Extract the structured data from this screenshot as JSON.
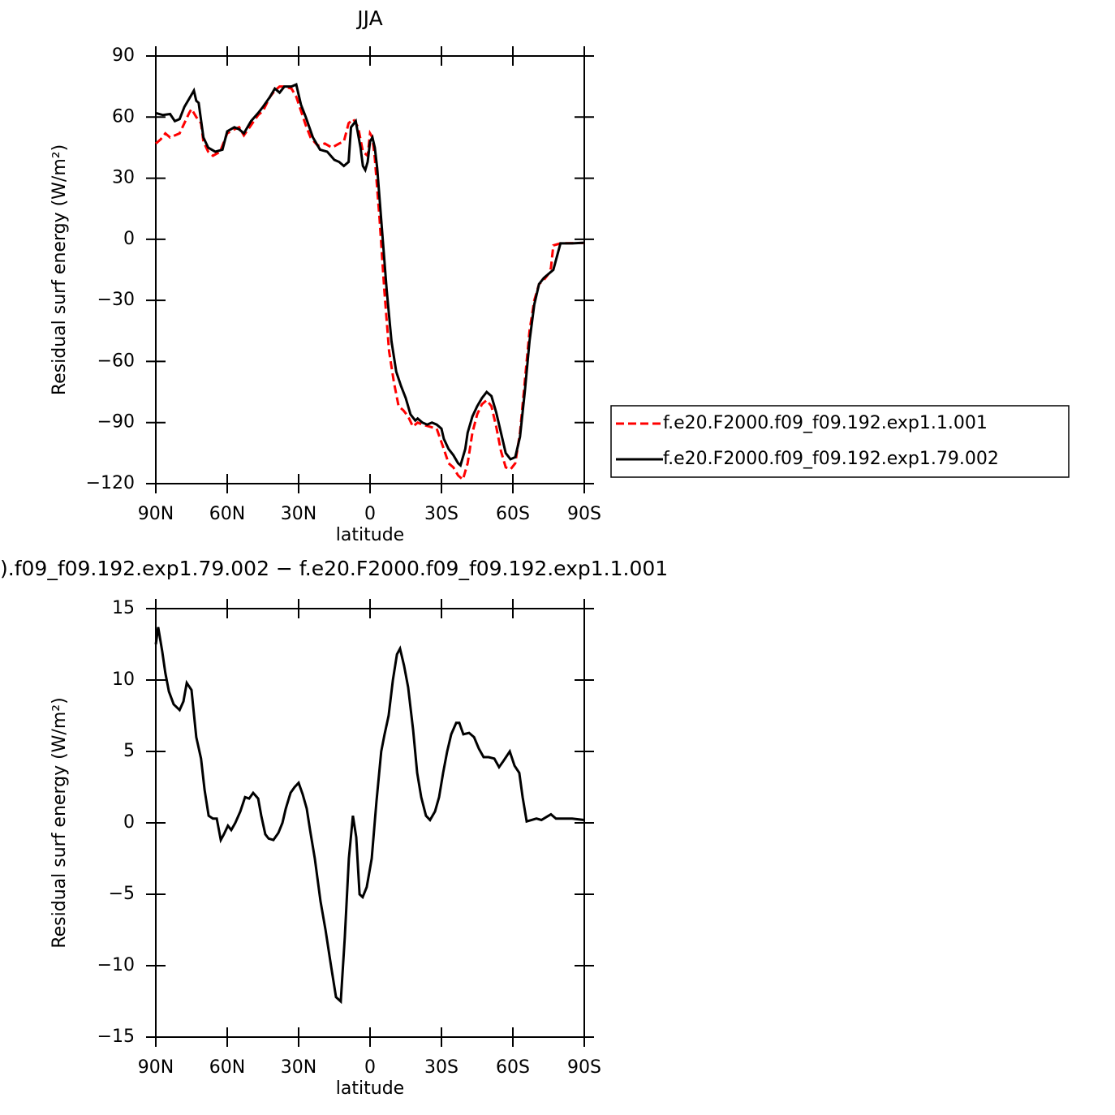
{
  "chart_data": [
    {
      "type": "line",
      "title": "JJA",
      "xlabel": "latitude",
      "ylabel": "Residual surf energy (W/m²)",
      "xlim": [
        90,
        -90
      ],
      "xticks": [
        {
          "value": 90,
          "label": "90N"
        },
        {
          "value": 60,
          "label": "60N"
        },
        {
          "value": 30,
          "label": "30N"
        },
        0,
        {
          "value": -30,
          "label": "30S"
        },
        {
          "value": -60,
          "label": "60S"
        },
        {
          "value": -90,
          "label": "90S"
        }
      ],
      "ylim": [
        -120,
        90
      ],
      "yticks": [
        {
          "value": -120,
          "label": "−120"
        },
        {
          "value": -90,
          "label": "−90"
        },
        {
          "value": -60,
          "label": "−60"
        },
        {
          "value": -30,
          "label": "−30"
        },
        0,
        30,
        60,
        90
      ],
      "legend": "right",
      "series": [
        {
          "name": "f.e20.F2000.f09_f09.192.exp1.1.001",
          "color": "#ff0000",
          "dash": true,
          "x": [
            90,
            88,
            86,
            84,
            82,
            80,
            78,
            76,
            75,
            73,
            71,
            70,
            68,
            66,
            63,
            60,
            57,
            55,
            53,
            50,
            47,
            45,
            42,
            40,
            38,
            36,
            33,
            31,
            29,
            27,
            25,
            22,
            19,
            16,
            13,
            11,
            9,
            7,
            5,
            3,
            1,
            0,
            -1,
            -2,
            -4,
            -6,
            -8,
            -10,
            -12,
            -14,
            -16,
            -18,
            -20,
            -22,
            -25,
            -28,
            -31,
            -33,
            -35,
            -37,
            -39,
            -41,
            -43,
            -45,
            -47,
            -49,
            -51,
            -53,
            -55,
            -57,
            -59,
            -61,
            -63,
            -65,
            -67,
            -69,
            -71,
            -73,
            -75,
            -76,
            -77,
            -80,
            -90
          ],
          "values": [
            47,
            49,
            52,
            50,
            51,
            52,
            57,
            62,
            64,
            60,
            57,
            48,
            43,
            41,
            43,
            52,
            54,
            55,
            51,
            56,
            61,
            63,
            70,
            73,
            75,
            75,
            74,
            70,
            63,
            56,
            50,
            46,
            47,
            45,
            47,
            48,
            57,
            59,
            55,
            43,
            41,
            52,
            50,
            40,
            10,
            -25,
            -55,
            -70,
            -82,
            -84,
            -87,
            -92,
            -90,
            -91,
            -92,
            -93,
            -103,
            -110,
            -112,
            -116,
            -118,
            -110,
            -95,
            -86,
            -81,
            -79,
            -82,
            -92,
            -104,
            -112,
            -113,
            -110,
            -95,
            -70,
            -45,
            -30,
            -22,
            -20,
            -17,
            -14,
            -3,
            -2,
            -1.8
          ]
        },
        {
          "name": "f.e20.F2000.f09_f09.192.exp1.79.002",
          "color": "#000000",
          "dash": false,
          "x": [
            90,
            87,
            84,
            82,
            80,
            78,
            76,
            74,
            73,
            72,
            70,
            68,
            65,
            62,
            60,
            57,
            55,
            53,
            50,
            47,
            45,
            42,
            40,
            38,
            36,
            33,
            31,
            29,
            27,
            24,
            21,
            18,
            15,
            13,
            11,
            9,
            8,
            6,
            4,
            3,
            2,
            1,
            0,
            -1,
            -2,
            -3,
            -5,
            -7,
            -9,
            -11,
            -13,
            -15,
            -17,
            -19,
            -20,
            -22,
            -24,
            -26,
            -28,
            -30,
            -31,
            -33,
            -35,
            -37,
            -38,
            -40,
            -41,
            -43,
            -45,
            -47,
            -49,
            -51,
            -53,
            -55,
            -57,
            -59,
            -61,
            -63,
            -65,
            -67,
            -69,
            -71,
            -73,
            -75,
            -77,
            -80,
            -85,
            -90
          ],
          "values": [
            62,
            61,
            61.5,
            58,
            59,
            65,
            69,
            73,
            68,
            67,
            50,
            45,
            43,
            44,
            53,
            55,
            54,
            52,
            58,
            62,
            65,
            70,
            74,
            72,
            75,
            75,
            76,
            66,
            60,
            50,
            44,
            43,
            39,
            38,
            36,
            38,
            55,
            58,
            45,
            36,
            34,
            38,
            48,
            50,
            45,
            35,
            5,
            -25,
            -50,
            -65,
            -72,
            -78,
            -86,
            -89,
            -88,
            -90,
            -91,
            -90,
            -91,
            -93,
            -98,
            -103,
            -106,
            -110,
            -111,
            -103,
            -95,
            -87,
            -82,
            -78,
            -75,
            -77,
            -85,
            -95,
            -105,
            -108,
            -107,
            -97,
            -75,
            -50,
            -32,
            -22,
            -19,
            -17,
            -15,
            -2,
            -2,
            -1.7
          ]
        }
      ]
    },
    {
      "type": "line",
      "title": ").f09_f09.192.exp1.79.002 − f.e20.F2000.f09_f09.192.exp1.1.001",
      "xlabel": "latitude",
      "ylabel": "Residual surf energy (W/m²)",
      "xlim": [
        90,
        -90
      ],
      "xticks": [
        {
          "value": 90,
          "label": "90N"
        },
        {
          "value": 60,
          "label": "60N"
        },
        {
          "value": 30,
          "label": "30N"
        },
        0,
        {
          "value": -30,
          "label": "30S"
        },
        {
          "value": -60,
          "label": "60S"
        },
        {
          "value": -90,
          "label": "90S"
        }
      ],
      "ylim": [
        -15,
        15
      ],
      "yticks": [
        {
          "value": -15,
          "label": "−15"
        },
        {
          "value": -10,
          "label": "−10"
        },
        {
          "value": -5,
          "label": "−5"
        },
        0,
        5,
        10,
        15
      ],
      "series": [
        {
          "color": "#000000",
          "dash": false,
          "x": [
            90,
            89,
            87.3,
            86,
            84.5,
            82.5,
            80,
            78.4,
            77,
            75,
            73,
            71,
            69.5,
            67.8,
            66,
            64.4,
            62.7,
            61.4,
            59.7,
            58.3,
            56.6,
            54.5,
            52.5,
            50.8,
            49.1,
            47,
            45.7,
            44,
            42.6,
            40.6,
            38.5,
            36.8,
            35.4,
            33.4,
            31.7,
            30,
            28.3,
            26.6,
            25.2,
            23.2,
            20.8,
            18.7,
            16.4,
            14.3,
            12.3,
            10.6,
            8.9,
            7.2,
            5.8,
            4.4,
            3.1,
            1.4,
            -0.7,
            -2.7,
            -4.7,
            -6.1,
            -7.8,
            -9.6,
            -11.3,
            -12.6,
            -14.3,
            -16,
            -18.1,
            -19.8,
            -21.5,
            -23.5,
            -25.2,
            -27.3,
            -29,
            -30.7,
            -32.4,
            -34.1,
            -36.2,
            -37.5,
            -39.2,
            -41.6,
            -43.7,
            -45.7,
            -47.7,
            -49.8,
            -52.2,
            -54.2,
            -55.9,
            -58.7,
            -60.7,
            -62.7,
            -64.1,
            -65.8,
            -67.9,
            -69.9,
            -72,
            -74,
            -76,
            -78.1,
            -81.5,
            -84.9,
            -90
          ],
          "values": [
            12.5,
            13.7,
            12,
            10.5,
            9.2,
            8.3,
            7.9,
            8.5,
            9.8,
            9.3,
            6,
            4.5,
            2.3,
            0.5,
            0.3,
            0.3,
            -1.2,
            -0.8,
            -0.2,
            -0.5,
            0,
            0.8,
            1.8,
            1.7,
            2.1,
            1.7,
            0.5,
            -0.8,
            -1.1,
            -1.2,
            -0.7,
            0,
            1,
            2.1,
            2.5,
            2.8,
            2,
            1,
            -0.5,
            -2.5,
            -5.5,
            -7.5,
            -10,
            -12.2,
            -12.5,
            -8,
            -2.5,
            0.5,
            -1,
            -5,
            -5.2,
            -4.5,
            -2.5,
            1.5,
            5,
            6.2,
            7.5,
            10,
            11.8,
            12.2,
            11,
            9.5,
            6.5,
            3.5,
            1.8,
            0.5,
            0.2,
            0.8,
            1.8,
            3.5,
            5,
            6.2,
            7,
            7,
            6.2,
            6.3,
            6,
            5.2,
            4.6,
            4.6,
            4.5,
            3.9,
            4.3,
            5,
            4,
            3.5,
            1.8,
            0.1,
            0.2,
            0.3,
            0.2,
            0.4,
            0.6,
            0.3,
            0.3,
            0.3,
            0.2
          ]
        }
      ]
    }
  ]
}
